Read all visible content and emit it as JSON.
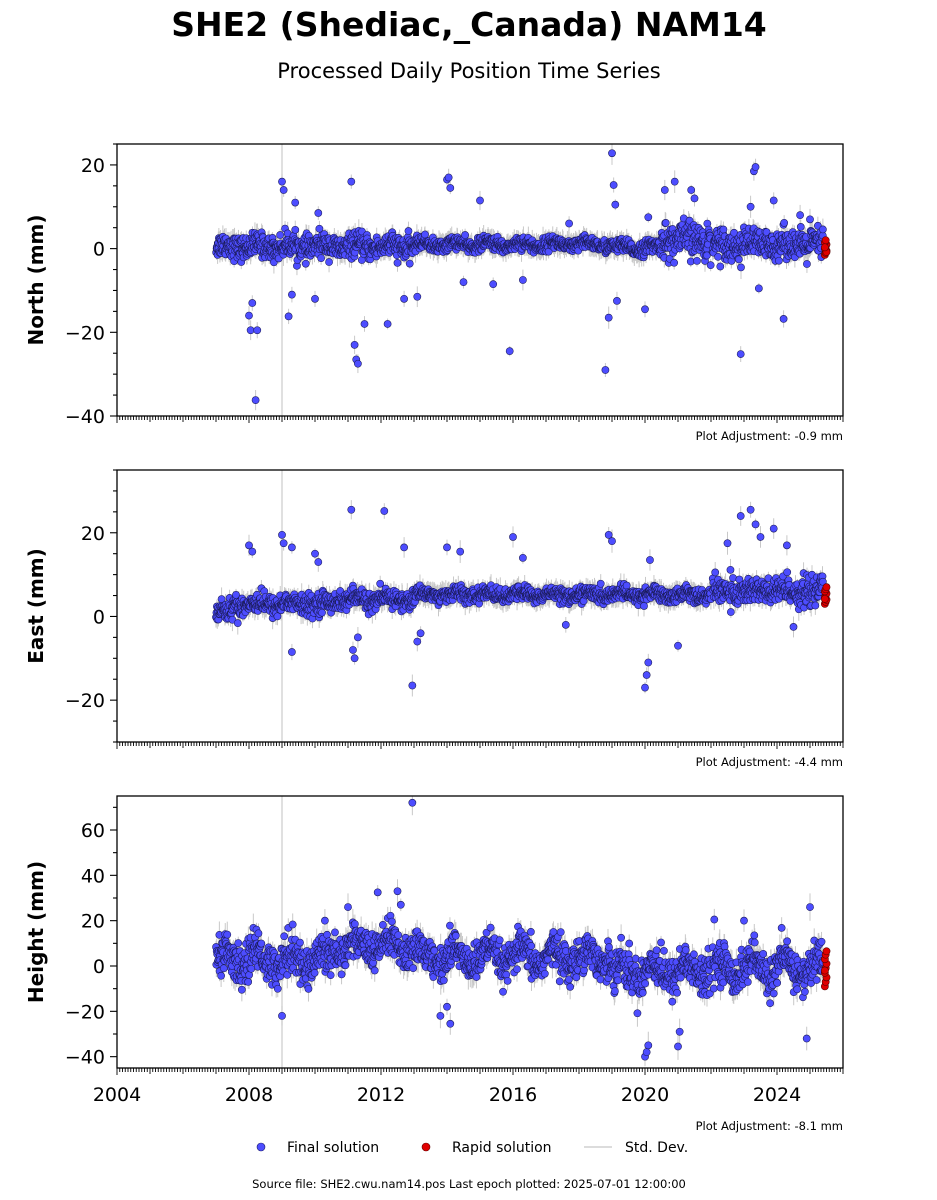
{
  "header": {
    "title": "SHE2 (Shediac,_Canada) NAM14",
    "subtitle": "Processed Daily Position Time Series"
  },
  "legend": {
    "final": "Final solution",
    "rapid": "Rapid solution",
    "stddev": "Std. Dev."
  },
  "footer": {
    "source": "Source file: SHE2.cwu.nam14.pos  Last epoch plotted: 2025-07-01 12:00:00"
  },
  "colors": {
    "final": "#4d4dff",
    "rapid": "#e00000",
    "stddev": "#c8c8c8",
    "gap_line": "#d0d0d0"
  },
  "chart_data": [
    {
      "type": "scatter",
      "id": "north",
      "ylabel": "North (mm)",
      "ylim": [
        -40,
        25
      ],
      "yticks": [
        -40,
        -20,
        0,
        20
      ],
      "yminor_step": 5,
      "xlim": [
        2004,
        2026
      ],
      "x_tick_labels_shown": false,
      "adjustment": "Plot Adjustment: -0.9 mm",
      "vline_x": 2009.0,
      "series": [
        {
          "name": "Final solution",
          "x_range": [
            2007.0,
            2025.4
          ],
          "gaps": [
            [
              2022.0,
              2022.05
            ]
          ],
          "segments": [
            {
              "x0": 2007.0,
              "x1": 2013.0,
              "center": 0.5,
              "spread": 2.5
            },
            {
              "x0": 2013.0,
              "x1": 2019.0,
              "center": 1.0,
              "spread": 1.4
            },
            {
              "x0": 2019.0,
              "x1": 2020.5,
              "center": 0.2,
              "spread": 1.5
            },
            {
              "x0": 2020.5,
              "x1": 2022.0,
              "center": 2.0,
              "spread": 3.8
            },
            {
              "x0": 2022.05,
              "x1": 2025.4,
              "center": 1.0,
              "spread": 3.2
            }
          ],
          "outliers": [
            [
              2008.2,
              -36.2
            ],
            [
              2008.05,
              -19.5
            ],
            [
              2008.0,
              -16
            ],
            [
              2008.1,
              -13
            ],
            [
              2008.25,
              -19.5
            ],
            [
              2009.0,
              16
            ],
            [
              2009.05,
              14
            ],
            [
              2009.2,
              -16.2
            ],
            [
              2009.3,
              -11
            ],
            [
              2009.4,
              11
            ],
            [
              2010.0,
              -12
            ],
            [
              2010.1,
              8.5
            ],
            [
              2011.1,
              16
            ],
            [
              2011.2,
              -23
            ],
            [
              2011.25,
              -26.5
            ],
            [
              2011.3,
              -27.5
            ],
            [
              2011.5,
              -18
            ],
            [
              2012.2,
              -18
            ],
            [
              2012.7,
              -12
            ],
            [
              2013.1,
              -11.5
            ],
            [
              2014.0,
              16.5
            ],
            [
              2014.05,
              17
            ],
            [
              2014.1,
              14.5
            ],
            [
              2014.5,
              -8
            ],
            [
              2015.0,
              11.5
            ],
            [
              2015.4,
              -8.5
            ],
            [
              2015.9,
              -24.5
            ],
            [
              2016.3,
              -7.5
            ],
            [
              2017.7,
              6
            ],
            [
              2018.8,
              -29
            ],
            [
              2018.9,
              -16.5
            ],
            [
              2019.0,
              22.8
            ],
            [
              2019.05,
              15.2
            ],
            [
              2019.1,
              10.5
            ],
            [
              2019.15,
              -12.5
            ],
            [
              2020.0,
              -14.5
            ],
            [
              2020.1,
              7.5
            ],
            [
              2020.6,
              14
            ],
            [
              2020.9,
              16
            ],
            [
              2021.4,
              14
            ],
            [
              2021.5,
              12
            ],
            [
              2022.9,
              -25.2
            ],
            [
              2023.2,
              10
            ],
            [
              2023.3,
              18.5
            ],
            [
              2023.35,
              19.5
            ],
            [
              2023.45,
              -9.5
            ],
            [
              2023.9,
              11.5
            ],
            [
              2024.2,
              -16.8
            ],
            [
              2024.7,
              8
            ],
            [
              2025.0,
              7
            ]
          ]
        },
        {
          "name": "Rapid solution",
          "x_range": [
            2025.45,
            2025.5
          ],
          "values": [
            -1.5,
            -1,
            -0.5,
            0,
            0.5,
            1,
            1.5,
            2,
            -0.8,
            0.3
          ]
        }
      ]
    },
    {
      "type": "scatter",
      "id": "east",
      "ylabel": "East (mm)",
      "ylim": [
        -30,
        35
      ],
      "yticks": [
        -20,
        0,
        20
      ],
      "yminor_step": 5,
      "xlim": [
        2004,
        2026
      ],
      "x_tick_labels_shown": false,
      "adjustment": "Plot Adjustment: -4.4 mm",
      "vline_x": 2009.0,
      "series": [
        {
          "name": "Final solution",
          "x_range": [
            2007.0,
            2025.4
          ],
          "gaps": [
            [
              2022.0,
              2022.05
            ]
          ],
          "segments": [
            {
              "x0": 2007.0,
              "x1": 2007.5,
              "center": 1.0,
              "spread": 2.0
            },
            {
              "x0": 2007.5,
              "x1": 2010.5,
              "center": 3.0,
              "spread": 2.2
            },
            {
              "x0": 2010.5,
              "x1": 2013.0,
              "center": 4.0,
              "spread": 2.0
            },
            {
              "x0": 2013.0,
              "x1": 2022.0,
              "center": 5.2,
              "spread": 1.5
            },
            {
              "x0": 2022.05,
              "x1": 2025.4,
              "center": 6.0,
              "spread": 3.0
            }
          ],
          "outliers": [
            [
              2008.0,
              17
            ],
            [
              2008.1,
              15.5
            ],
            [
              2009.0,
              19.5
            ],
            [
              2009.05,
              17.5
            ],
            [
              2009.3,
              16.5
            ],
            [
              2009.3,
              -8.5
            ],
            [
              2010.0,
              15
            ],
            [
              2010.1,
              13
            ],
            [
              2011.1,
              25.5
            ],
            [
              2011.15,
              -8
            ],
            [
              2011.2,
              -10
            ],
            [
              2011.3,
              -5
            ],
            [
              2012.1,
              25.2
            ],
            [
              2012.7,
              16.5
            ],
            [
              2012.95,
              -16.5
            ],
            [
              2013.1,
              -6
            ],
            [
              2013.2,
              -4
            ],
            [
              2014.0,
              16.5
            ],
            [
              2014.4,
              15.5
            ],
            [
              2016.0,
              19
            ],
            [
              2016.3,
              14
            ],
            [
              2017.6,
              -2
            ],
            [
              2018.9,
              19.5
            ],
            [
              2019.0,
              18
            ],
            [
              2020.0,
              -17
            ],
            [
              2020.05,
              -14
            ],
            [
              2020.1,
              -11
            ],
            [
              2020.15,
              13.5
            ],
            [
              2021.0,
              -7
            ],
            [
              2022.5,
              17.5
            ],
            [
              2022.9,
              24
            ],
            [
              2023.2,
              25.5
            ],
            [
              2023.35,
              22
            ],
            [
              2023.5,
              19
            ],
            [
              2023.9,
              21
            ],
            [
              2024.3,
              17
            ],
            [
              2024.5,
              -2.5
            ]
          ]
        },
        {
          "name": "Rapid solution",
          "x_range": [
            2025.45,
            2025.5
          ],
          "values": [
            3,
            3.5,
            4,
            4.5,
            5,
            5.5,
            6,
            6.5,
            7,
            4.2
          ]
        }
      ]
    },
    {
      "type": "scatter",
      "id": "height",
      "ylabel": "Height (mm)",
      "ylim": [
        -45,
        75
      ],
      "yticks": [
        -40,
        -20,
        0,
        20,
        40,
        60
      ],
      "yminor_step": 10,
      "xlim": [
        2004,
        2026
      ],
      "xticks": [
        2004,
        2008,
        2012,
        2016,
        2020,
        2024
      ],
      "x_tick_labels_shown": true,
      "adjustment": "Plot Adjustment: -8.1 mm",
      "vline_x": 2009.0,
      "series": [
        {
          "name": "Final solution",
          "x_range": [
            2007.0,
            2025.4
          ],
          "gaps": [
            [
              2022.0,
              2022.05
            ]
          ],
          "segments": [
            {
              "x0": 2007.0,
              "x1": 2010.5,
              "center": 3.0,
              "spread": 8.0
            },
            {
              "x0": 2010.5,
              "x1": 2013.0,
              "center": 9.0,
              "spread": 7.0
            },
            {
              "x0": 2013.0,
              "x1": 2019.0,
              "center": 4.0,
              "spread": 7.0
            },
            {
              "x0": 2019.0,
              "x1": 2022.0,
              "center": -2.0,
              "spread": 8.0
            },
            {
              "x0": 2022.05,
              "x1": 2025.4,
              "center": -1.0,
              "spread": 7.5
            }
          ],
          "outliers": [
            [
              2012.95,
              72
            ],
            [
              2011.9,
              32.5
            ],
            [
              2012.5,
              33
            ],
            [
              2012.6,
              27
            ],
            [
              2011.0,
              26
            ],
            [
              2013.8,
              -22
            ],
            [
              2014.1,
              -25.5
            ],
            [
              2014.0,
              -18
            ],
            [
              2020.0,
              -40
            ],
            [
              2020.05,
              -38
            ],
            [
              2020.1,
              -35
            ],
            [
              2021.0,
              -35.5
            ],
            [
              2021.05,
              -29
            ],
            [
              2022.1,
              20.5
            ],
            [
              2023.0,
              20
            ],
            [
              2025.0,
              26
            ],
            [
              2024.9,
              -32
            ],
            [
              2009.0,
              -22
            ],
            [
              2010.3,
              20
            ]
          ]
        },
        {
          "name": "Rapid solution",
          "x_range": [
            2025.45,
            2025.5
          ],
          "values": [
            -9,
            -7,
            -5,
            -3,
            -1,
            1,
            3,
            5,
            6.5,
            -2
          ]
        }
      ]
    }
  ]
}
